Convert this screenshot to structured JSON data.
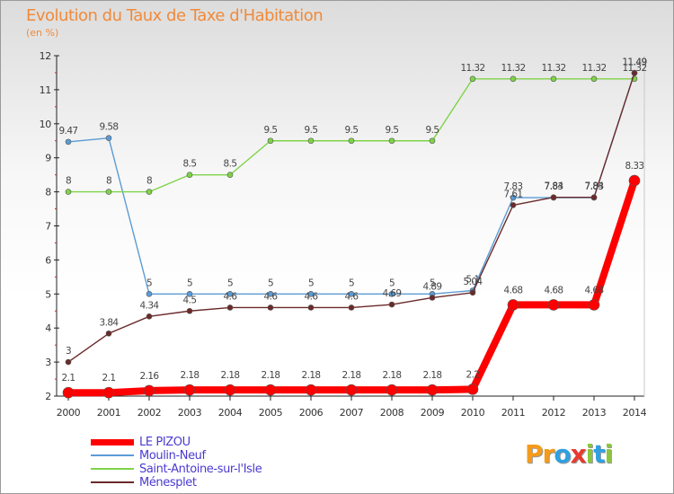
{
  "header": {
    "title": "Evolution du Taux de Taxe d'Habitation",
    "subtitle": "(en %)"
  },
  "logo": {
    "text": "Proxiti",
    "letters": [
      {
        "ch": "P",
        "color": "#f59a1a"
      },
      {
        "ch": "r",
        "color": "#f59a1a"
      },
      {
        "ch": "o",
        "color": "#2fa0e0"
      },
      {
        "ch": "x",
        "color": "#e83a30"
      },
      {
        "ch": "i",
        "color": "#8cc63f"
      },
      {
        "ch": "t",
        "color": "#2fa0e0"
      },
      {
        "ch": "i",
        "color": "#8cc63f"
      }
    ]
  },
  "chart_data": {
    "type": "line",
    "ylim": [
      2,
      12
    ],
    "yticks": [
      2,
      3,
      4,
      5,
      6,
      7,
      8,
      9,
      10,
      11,
      12
    ],
    "x": [
      "2000",
      "2001",
      "2002",
      "2003",
      "2004",
      "2005",
      "2006",
      "2007",
      "2008",
      "2009",
      "2010",
      "2011",
      "2012",
      "2013",
      "2014"
    ],
    "grid": false,
    "legend": "bottom-left",
    "series": [
      {
        "name": "LE PIZOU",
        "color": "#ff0000",
        "values": [
          2.1,
          2.1,
          2.16,
          2.18,
          2.18,
          2.18,
          2.18,
          2.18,
          2.18,
          2.18,
          2.2,
          4.68,
          4.68,
          4.68,
          8.33
        ],
        "labels": [
          "2.1",
          "2.1",
          "2.16",
          "2.18",
          "2.18",
          "2.18",
          "2.18",
          "2.18",
          "2.18",
          "2.18",
          "2.2",
          "4.68",
          "4.68",
          "4.68",
          "8.33"
        ]
      },
      {
        "name": "Moulin-Neuf",
        "color": "#5b9bd5",
        "values": [
          9.47,
          9.58,
          5,
          5,
          5,
          5,
          5,
          5,
          5,
          5,
          5.1,
          7.83,
          7.83,
          7.83,
          11.49
        ],
        "labels": [
          "9.47",
          "9.58",
          "5",
          "5",
          "5",
          "5",
          "5",
          "5",
          "5",
          "5",
          "5.1",
          "7.83",
          "7.83",
          "7.83",
          "11.49"
        ]
      },
      {
        "name": "Saint-Antoine-sur-l'Isle",
        "color": "#7ed348",
        "values": [
          8,
          8,
          8,
          8.5,
          8.5,
          9.5,
          9.5,
          9.5,
          9.5,
          9.5,
          11.32,
          11.32,
          11.32,
          11.32,
          11.32
        ],
        "labels": [
          "8",
          "8",
          "8",
          "8.5",
          "8.5",
          "9.5",
          "9.5",
          "9.5",
          "9.5",
          "9.5",
          "11.32",
          "11.32",
          "11.32",
          "11.32",
          "11.32"
        ]
      },
      {
        "name": "Ménesplet",
        "color": "#6b2a2a",
        "values": [
          3,
          3.84,
          4.34,
          4.5,
          4.6,
          4.6,
          4.6,
          4.6,
          4.69,
          4.89,
          5.04,
          7.61,
          7.84,
          7.84,
          11.49
        ],
        "labels": [
          "3",
          "3.84",
          "4.34",
          "4.5",
          "4.6",
          "4.6",
          "4.6",
          "4.6",
          "4.69",
          "4.89",
          "5.04",
          "7.61",
          "7.84",
          "7.84",
          "11.49"
        ]
      }
    ]
  }
}
